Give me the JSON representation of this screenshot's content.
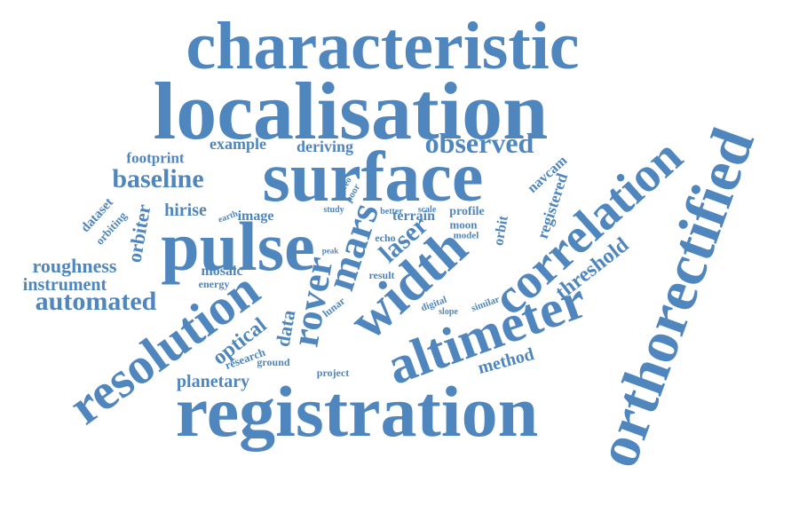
{
  "theme": {
    "word_color": "#4f86bd",
    "background": "#ffffff"
  },
  "words": [
    "characteristic",
    "localisation",
    "surface",
    "pulse",
    "registration",
    "orthorectified",
    "correlation",
    "altimeter",
    "resolution",
    "width",
    "rover",
    "mars",
    "observed",
    "baseline",
    "laser",
    "automated",
    "threshold",
    "optical",
    "example",
    "deriving",
    "footprint",
    "hirise",
    "roughness",
    "instrument",
    "orbiter",
    "image",
    "data",
    "planetary",
    "method",
    "mosaic",
    "registered",
    "navcam",
    "orbit",
    "terrain",
    "profile",
    "moon",
    "echo",
    "dataset",
    "orbiting",
    "research",
    "ground",
    "project",
    "lunar",
    "energy",
    "result",
    "digital",
    "slope",
    "similar",
    "model",
    "better",
    "scale",
    "study",
    "earth",
    "stereo",
    "poor",
    "peak"
  ]
}
